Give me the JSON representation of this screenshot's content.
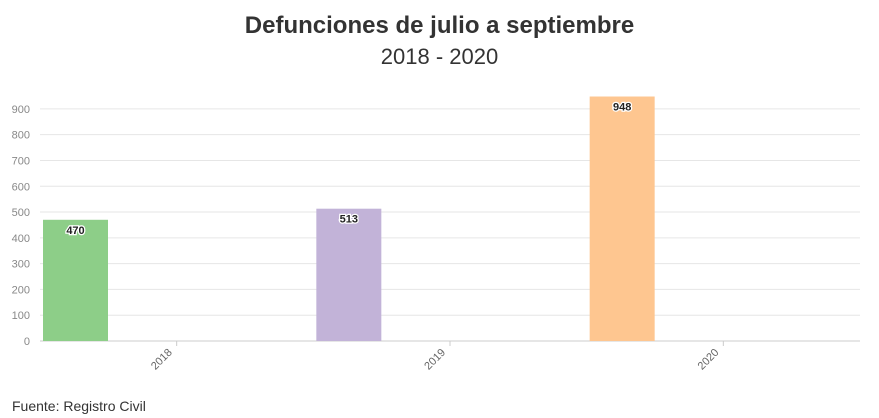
{
  "header": {
    "title": "Defunciones de julio a septiembre",
    "subtitle": "2018 - 2020"
  },
  "footer": {
    "source": "Fuente: Registro Civil"
  },
  "chart_data": {
    "type": "bar",
    "title": "Defunciones de julio a septiembre",
    "subtitle": "2018 - 2020",
    "categories": [
      "2018",
      "2019",
      "2020"
    ],
    "values": [
      470,
      513,
      948
    ],
    "data_labels": [
      "470",
      "513",
      "948"
    ],
    "bar_colors": [
      "#8dce88",
      "#c2b3d8",
      "#fec690"
    ],
    "xlabel": "",
    "ylabel": "",
    "ylim": [
      0,
      950
    ],
    "yticks": [
      0,
      100,
      200,
      300,
      400,
      500,
      600,
      700,
      800,
      900
    ],
    "grid": true,
    "legend": "none"
  }
}
